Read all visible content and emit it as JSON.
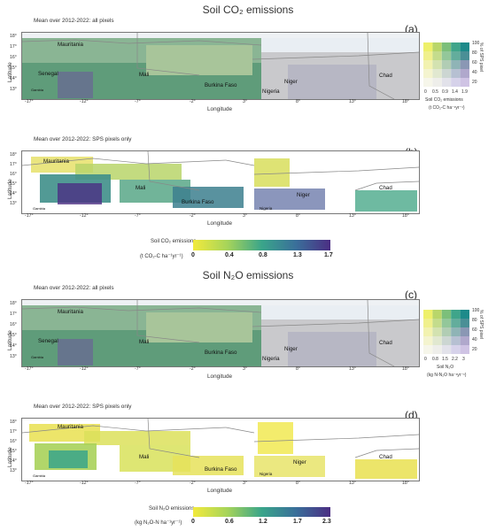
{
  "sections": {
    "co2_title": "Soil CO₂ emissions",
    "n2o_title": "Soil N₂O emissions"
  },
  "panels": [
    {
      "id": "a",
      "letter": "(a)",
      "subtitle": "Mean over 2012-2022: all pixels"
    },
    {
      "id": "b",
      "letter": "(b)",
      "subtitle": "Mean over 2012-2022: SPS pixels only"
    },
    {
      "id": "c",
      "letter": "(c)",
      "subtitle": "Mean over 2012-2022: all pixels"
    },
    {
      "id": "d",
      "letter": "(d)",
      "subtitle": "Mean over 2012-2022: SPS pixels only"
    }
  ],
  "axes": {
    "ylabel": "Latitude",
    "xlabel": "Longitude",
    "lat_ticks": [
      "18°",
      "17°",
      "16°",
      "15°",
      "14°",
      "13°"
    ],
    "lon_ticks": [
      "-17°",
      "-12°",
      "-7°",
      "-2°",
      "3°",
      "8°",
      "13°",
      "18°"
    ]
  },
  "countries": {
    "mauritania": "Mauritania",
    "senegal": "Senegal",
    "gambia": "Gambia",
    "mali": "Mali",
    "burkina": "Burkina Faso",
    "niger": "Niger",
    "nigeria": "Nigeria",
    "chad": "Chad"
  },
  "bivariate_legend_co2": {
    "side_label": "% of SPS pixel",
    "y_ticks": [
      "100",
      "80",
      "60",
      "40",
      "20"
    ],
    "x_ticks": [
      "0",
      "0.5",
      "0.9",
      "1.4",
      "1.9"
    ],
    "title": "Soil CO₂ emissions",
    "unit": "(t CO₂-C ha⁻¹yr⁻¹)"
  },
  "bivariate_legend_n2o": {
    "side_label": "% of SPS pixel",
    "y_ticks": [
      "100",
      "80",
      "60",
      "40",
      "20"
    ],
    "x_ticks": [
      "0",
      "0.8",
      "1.5",
      "2.2",
      "3"
    ],
    "title": "Soil N₂O",
    "unit": "(kg N-N₂O ha⁻¹yr⁻¹)"
  },
  "colorbar_co2": {
    "title": "Soil CO₂ emissions",
    "unit": "(t CO₂-C ha⁻¹yr⁻¹)",
    "ticks": [
      "0",
      "0.4",
      "0.8",
      "1.3",
      "1.7"
    ]
  },
  "colorbar_n2o": {
    "title": "Soil N₂O emissions",
    "unit": "(kg N₂O-N ha⁻¹yr⁻¹)",
    "ticks": [
      "0",
      "0.6",
      "1.2",
      "1.7",
      "2.3"
    ]
  },
  "colors": {
    "low": "#f2ea5c",
    "mid": "#4aa98a",
    "high": "#4b2e83",
    "nodata_grey": "#c9c9cc",
    "frame": "#777777"
  }
}
